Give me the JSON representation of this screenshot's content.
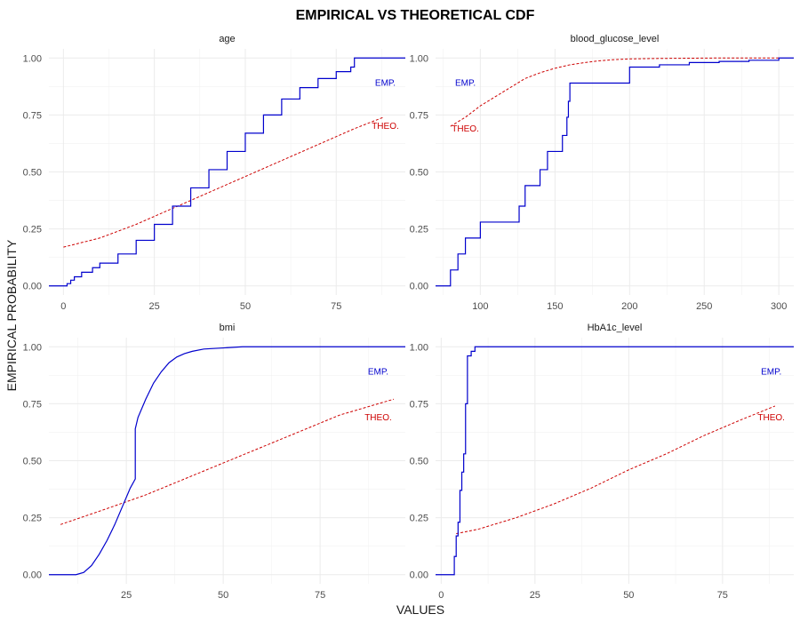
{
  "chart_data": {
    "type": "line",
    "title": "EMPIRICAL VS THEORETICAL CDF",
    "xlabel": "VALUES",
    "ylabel": "EMPIRICAL PROBABILITY",
    "legend": "none",
    "grid": true,
    "colors": {
      "empirical": "#0000cd",
      "theoretical": "#cd0000"
    },
    "y_ticks": [
      "0.00",
      "0.25",
      "0.50",
      "0.75",
      "1.00"
    ],
    "ylim": [
      -0.04,
      1.04
    ],
    "panels": [
      {
        "name": "age",
        "xlim": [
          -4,
          94
        ],
        "x_ticks": [
          0,
          25,
          50,
          75
        ],
        "label_emp": "EMP.",
        "label_theo": "THEO.",
        "label_emp_pos": [
          88.5,
          0.89
        ],
        "label_theo_pos": [
          88.5,
          0.7
        ],
        "empirical": {
          "step": true,
          "x": [
            -4,
            0,
            1,
            2,
            3,
            5,
            8,
            10,
            15,
            20,
            25,
            30,
            35,
            40,
            45,
            50,
            55,
            60,
            65,
            70,
            75,
            79,
            80,
            80,
            94
          ],
          "y": [
            0,
            0,
            0.01,
            0.025,
            0.04,
            0.06,
            0.08,
            0.1,
            0.14,
            0.2,
            0.27,
            0.35,
            0.43,
            0.51,
            0.59,
            0.67,
            0.75,
            0.82,
            0.87,
            0.91,
            0.94,
            0.96,
            0.96,
            1.0,
            1.0
          ]
        },
        "theoretical": {
          "x": [
            0,
            10,
            20,
            30,
            40,
            50,
            60,
            70,
            80,
            88
          ],
          "y": [
            0.17,
            0.21,
            0.27,
            0.34,
            0.41,
            0.48,
            0.55,
            0.62,
            0.69,
            0.74
          ]
        }
      },
      {
        "name": "blood_glucose_level",
        "xlim": [
          70,
          310
        ],
        "x_ticks": [
          100,
          150,
          200,
          250,
          300
        ],
        "label_emp": "EMP.",
        "label_theo": "THEO.",
        "label_emp_pos": [
          90,
          0.89
        ],
        "label_theo_pos": [
          90,
          0.69
        ],
        "empirical": {
          "step": true,
          "x": [
            70,
            80,
            85,
            90,
            100,
            126,
            130,
            140,
            145,
            155,
            158,
            159,
            160,
            200,
            220,
            240,
            260,
            280,
            300,
            310
          ],
          "y": [
            0,
            0.07,
            0.14,
            0.21,
            0.28,
            0.35,
            0.44,
            0.51,
            0.59,
            0.66,
            0.74,
            0.81,
            0.89,
            0.96,
            0.97,
            0.98,
            0.985,
            0.99,
            1.0,
            1.0
          ]
        },
        "theoretical": {
          "x": [
            80,
            90,
            100,
            110,
            120,
            130,
            140,
            150,
            160,
            170,
            180,
            190,
            200,
            220,
            240,
            260,
            280,
            300
          ],
          "y": [
            0.7,
            0.74,
            0.79,
            0.83,
            0.87,
            0.91,
            0.935,
            0.955,
            0.97,
            0.98,
            0.988,
            0.993,
            0.996,
            0.998,
            0.999,
            1.0,
            1.0,
            1.0
          ]
        }
      },
      {
        "name": "bmi",
        "xlim": [
          5,
          97
        ],
        "x_ticks": [
          25,
          50,
          75
        ],
        "label_emp": "EMP.",
        "label_theo": "THEO.",
        "label_emp_pos": [
          90,
          0.89
        ],
        "label_theo_pos": [
          90,
          0.69
        ],
        "empirical": {
          "step": false,
          "x": [
            5,
            12,
            14,
            16,
            18,
            20,
            22,
            24,
            26,
            27.3,
            27.3,
            28,
            30,
            32,
            34,
            36,
            38,
            40,
            42,
            45,
            50,
            55,
            60,
            97
          ],
          "y": [
            0,
            0,
            0.01,
            0.04,
            0.09,
            0.15,
            0.22,
            0.3,
            0.38,
            0.42,
            0.64,
            0.69,
            0.77,
            0.84,
            0.89,
            0.93,
            0.955,
            0.97,
            0.98,
            0.99,
            0.995,
            1.0,
            1.0,
            1.0
          ]
        },
        "theoretical": {
          "x": [
            8,
            20,
            30,
            40,
            50,
            60,
            70,
            80,
            94
          ],
          "y": [
            0.22,
            0.29,
            0.35,
            0.42,
            0.49,
            0.56,
            0.63,
            0.7,
            0.77
          ]
        }
      },
      {
        "name": "HbA1c_level",
        "xlim": [
          -1.5,
          94
        ],
        "x_ticks": [
          0,
          25,
          50,
          75
        ],
        "label_emp": "EMP.",
        "label_theo": "THEO.",
        "label_emp_pos": [
          88,
          0.89
        ],
        "label_theo_pos": [
          88,
          0.69
        ],
        "empirical": {
          "step": true,
          "x": [
            -1.5,
            3.5,
            4,
            4.5,
            5,
            5.5,
            6,
            6.5,
            7,
            8,
            9,
            94
          ],
          "y": [
            0,
            0.08,
            0.17,
            0.23,
            0.37,
            0.45,
            0.53,
            0.75,
            0.96,
            0.98,
            1.0,
            1.0
          ]
        },
        "theoretical": {
          "x": [
            4,
            10,
            20,
            30,
            40,
            50,
            60,
            70,
            80,
            89
          ],
          "y": [
            0.18,
            0.2,
            0.25,
            0.31,
            0.38,
            0.46,
            0.53,
            0.61,
            0.68,
            0.74
          ]
        }
      }
    ]
  }
}
